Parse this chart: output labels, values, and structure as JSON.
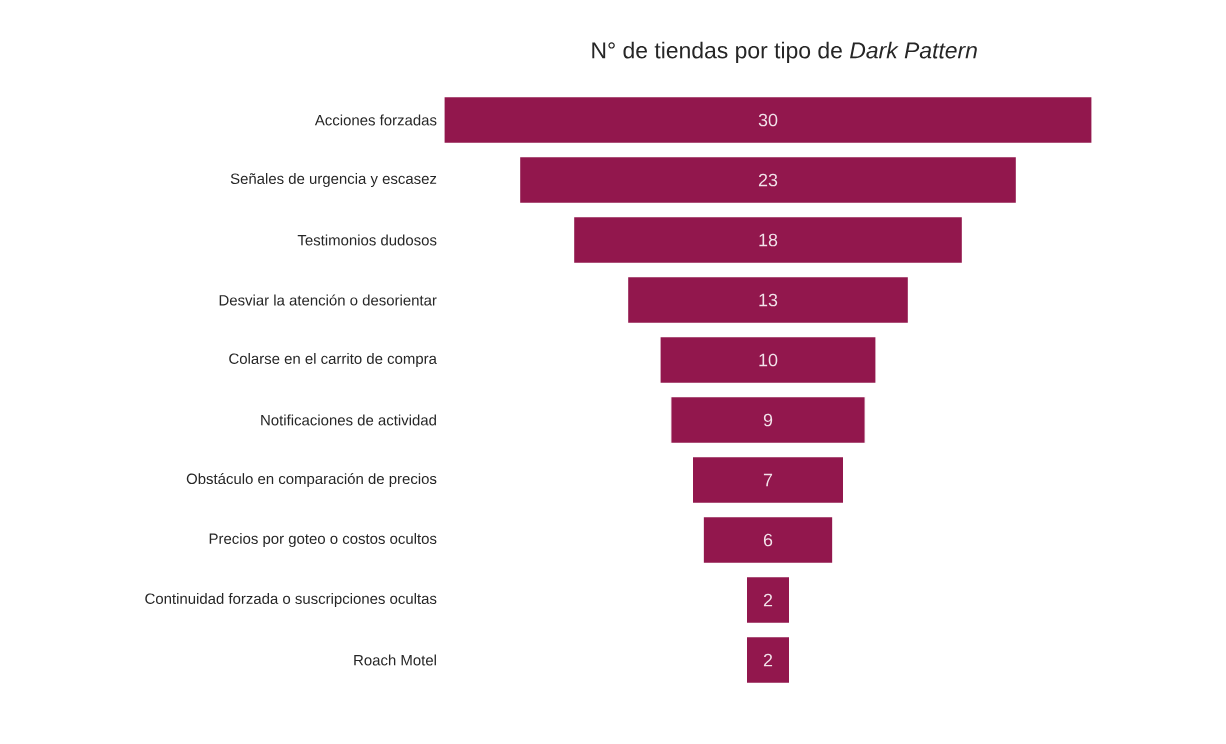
{
  "chart_data": {
    "type": "other",
    "title": "N° de tiendas por tipo de *Dark Pattern*",
    "categories": [
      "Acciones forzadas",
      "Señales de urgencia y escasez",
      "Testimonios dudosos",
      "Desviar la atención o desorientar",
      "Colarse en el carrito de compra",
      "Notificaciones de actividad",
      "Obstáculo en comparación de precios",
      "Precios por goteo o costos ocultos",
      "Continuidad forzada o suscripciones ocultas",
      "Roach Motel"
    ],
    "values": [
      30,
      23,
      18,
      13,
      10,
      9,
      7,
      6,
      2,
      2
    ],
    "color": "#92174d",
    "data_labels": true
  }
}
